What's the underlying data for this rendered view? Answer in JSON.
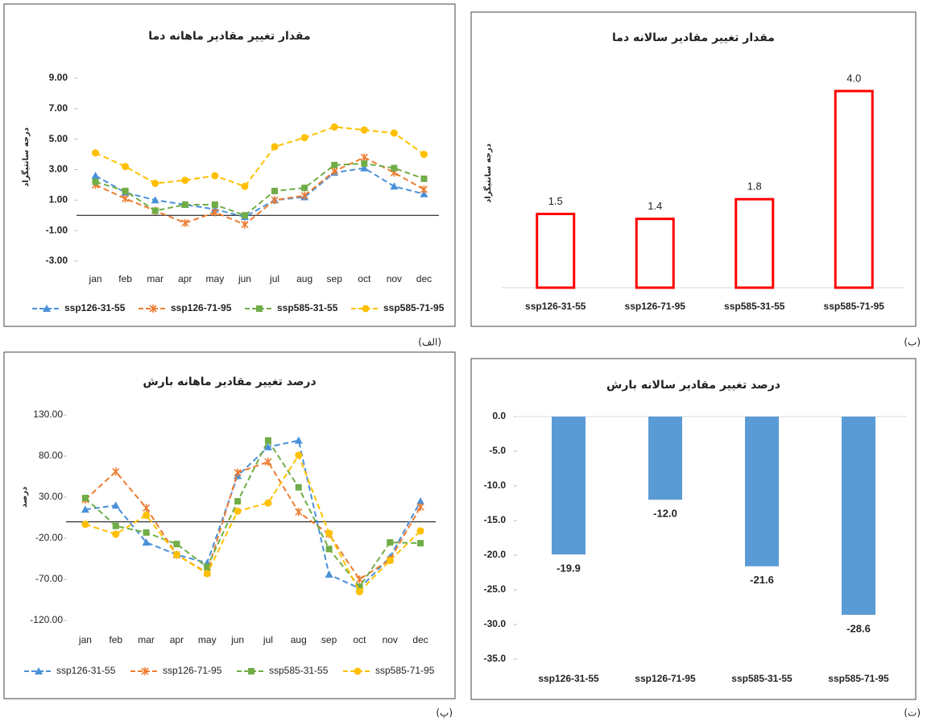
{
  "chart_data": [
    {
      "type": "line",
      "panel_label": "(الف)",
      "title": "مقدار تغییر مقادیر ماهانه دما",
      "y_label": "درجه سانتیگراد",
      "categories": [
        "jan",
        "feb",
        "mar",
        "apr",
        "may",
        "jun",
        "jul",
        "aug",
        "sep",
        "oct",
        "nov",
        "dec"
      ],
      "series": [
        {
          "name": "ssp126-31-55",
          "color": "#4a90d9",
          "marker": "triangle",
          "values": [
            2.6,
            1.5,
            1.0,
            0.7,
            0.4,
            -0.1,
            1.0,
            1.2,
            2.8,
            3.1,
            1.9,
            1.4
          ]
        },
        {
          "name": "ssp126-71-95",
          "color": "#ed7d31",
          "marker": "star",
          "values": [
            2.0,
            1.1,
            0.3,
            -0.5,
            0.2,
            -0.6,
            1.0,
            1.3,
            2.9,
            3.8,
            2.8,
            1.7
          ]
        },
        {
          "name": "ssp585-31-55",
          "color": "#70ad47",
          "marker": "square",
          "values": [
            2.2,
            1.6,
            0.3,
            0.7,
            0.7,
            0.0,
            1.6,
            1.8,
            3.3,
            3.4,
            3.1,
            2.4
          ]
        },
        {
          "name": "ssp585-71-95",
          "color": "#ffc000",
          "marker": "circle",
          "values": [
            4.1,
            3.2,
            2.1,
            2.3,
            2.6,
            1.9,
            4.5,
            5.1,
            5.8,
            5.6,
            5.4,
            4.0
          ]
        }
      ],
      "ylim": [
        -3,
        9
      ],
      "yticks": [
        {
          "value": -3,
          "label": "-3.00"
        },
        {
          "value": -1,
          "label": "-1.00"
        },
        {
          "value": 1,
          "label": "1.00"
        },
        {
          "value": 3,
          "label": "3.00"
        },
        {
          "value": 5,
          "label": "5.00"
        },
        {
          "value": 7,
          "label": "7.00"
        },
        {
          "value": 9,
          "label": "9.00"
        }
      ],
      "legend": "bottom",
      "grid": false
    },
    {
      "type": "bar",
      "panel_label": "(ب)",
      "title": "مقدار تغییر مقادیر سالانه دما",
      "y_label": "درجه سانتیگراد",
      "categories": [
        "ssp126-31-55",
        "ssp126-71-95",
        "ssp585-31-55",
        "ssp585-71-95"
      ],
      "values": [
        1.5,
        1.4,
        1.8,
        4
      ],
      "value_labels": [
        "1.5",
        "1.4",
        "1.8",
        "4.0"
      ],
      "color": "#ff0000",
      "filled": false,
      "ylim": [
        0,
        4.5
      ],
      "grid": false
    },
    {
      "type": "line",
      "panel_label": "(پ)",
      "title": "درصد تغییر مقادیر ماهانه بارش",
      "y_label": "درصد",
      "categories": [
        "jan",
        "feb",
        "mar",
        "apr",
        "may",
        "jun",
        "jul",
        "aug",
        "sep",
        "oct",
        "nov",
        "dec"
      ],
      "series": [
        {
          "name": "ssp126-31-55",
          "color": "#4a90d9",
          "marker": "triangle",
          "values": [
            15,
            20,
            -25,
            -40,
            -50,
            56,
            91,
            99,
            -64,
            -81,
            -43,
            25
          ]
        },
        {
          "name": "ssp126-71-95",
          "color": "#ed7d31",
          "marker": "star",
          "values": [
            27,
            61,
            17,
            -40,
            -62,
            60,
            73,
            12,
            -15,
            -70,
            -46,
            18
          ]
        },
        {
          "name": "ssp585-31-55",
          "color": "#70ad47",
          "marker": "square",
          "values": [
            29,
            -5,
            -13,
            -27,
            -55,
            25,
            99,
            42,
            -33,
            -79,
            -25,
            -26
          ]
        },
        {
          "name": "ssp585-71-95",
          "color": "#ffc000",
          "marker": "circle",
          "values": [
            -3,
            -15,
            8,
            -40,
            -63,
            13,
            23,
            81,
            -14,
            -85,
            -47,
            -11
          ]
        }
      ],
      "ylim": [
        -120,
        130
      ],
      "yticks": [
        {
          "value": -120,
          "label": "-120.00"
        },
        {
          "value": -70,
          "label": "-70.00"
        },
        {
          "value": -20,
          "label": "-20.00"
        },
        {
          "value": 30,
          "label": "30.00"
        },
        {
          "value": 80,
          "label": "80.00"
        },
        {
          "value": 130,
          "label": "130.00"
        }
      ],
      "legend": "bottom",
      "grid": false
    },
    {
      "type": "bar",
      "panel_label": "(ت)",
      "title": "درصد تغییر مقادیر سالانه بارش",
      "categories": [
        "ssp126-31-55",
        "ssp126-71-95",
        "ssp585-31-55",
        "ssp585-71-95"
      ],
      "values": [
        -19.9,
        -12,
        -21.6,
        -28.6
      ],
      "value_labels": [
        "-19.9",
        "-12.0",
        "-21.6",
        "-28.6"
      ],
      "color": "#5b9bd5",
      "filled": true,
      "ylim": [
        -35,
        0
      ],
      "yticks": [
        {
          "value": -35,
          "label": "-35.0"
        },
        {
          "value": -30,
          "label": "-30.0"
        },
        {
          "value": -25,
          "label": "-25.0"
        },
        {
          "value": -20,
          "label": "-20.0"
        },
        {
          "value": -15,
          "label": "-15.0"
        },
        {
          "value": -10,
          "label": "-10.0"
        },
        {
          "value": -5,
          "label": "-5.0"
        },
        {
          "value": 0,
          "label": "0.0"
        }
      ],
      "grid": false
    }
  ]
}
